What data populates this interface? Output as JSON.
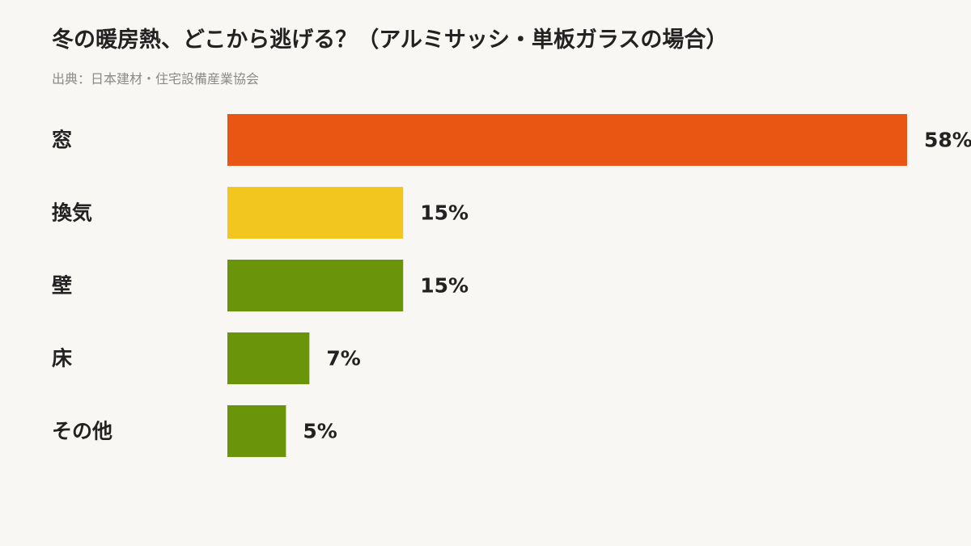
{
  "chart_data": {
    "type": "bar",
    "orientation": "horizontal",
    "title": "冬の暖房熱、どこから逃げる？（アルミサッシ・単板ガラスの場合）",
    "source": "出典：日本建材・住宅設備産業協会",
    "categories": [
      "窓",
      "換気",
      "壁",
      "床",
      "その他"
    ],
    "values": [
      58,
      15,
      15,
      7,
      5
    ],
    "value_labels": [
      "58%",
      "15%",
      "15%",
      "7%",
      "5%"
    ],
    "colors": [
      "#e95513",
      "#f3c61f",
      "#6a950a",
      "#6a950a",
      "#6a950a"
    ],
    "unit": "%",
    "xlim": [
      0,
      58
    ],
    "grid": false,
    "legend": "none"
  }
}
